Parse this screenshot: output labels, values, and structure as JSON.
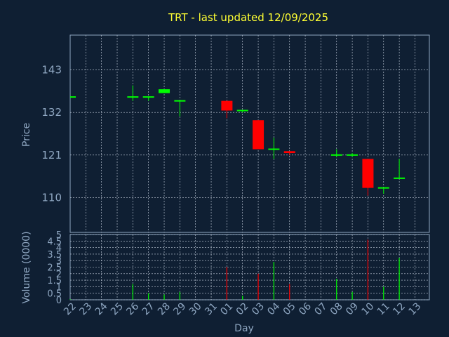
{
  "chart_data": {
    "type": "candlestick",
    "title": "TRT - last updated 12/09/2025",
    "xlabel": "Day",
    "ylabel": "Price",
    "volume_label": "Volume (0000)",
    "x_ticks": [
      "22",
      "23",
      "24",
      "25",
      "26",
      "27",
      "28",
      "29",
      "30",
      "31",
      "01",
      "02",
      "03",
      "04",
      "05",
      "06",
      "07",
      "08",
      "09",
      "10",
      "11",
      "12",
      "13"
    ],
    "price_ticks": [
      110,
      121,
      132,
      143
    ],
    "price_ylim": [
      101,
      152
    ],
    "volume_ticks": [
      "0",
      "0.5",
      "1",
      "1.5",
      "2",
      "2.5",
      "3",
      "3.5",
      "4",
      "4.5",
      "5"
    ],
    "volume_ylim": [
      0,
      5
    ],
    "grid": true,
    "colors": {
      "up": "#00ff00",
      "down": "#ff0000",
      "title": "#ffff33",
      "axis": "#8fa7c2",
      "background": "#0f1f33"
    },
    "candles": [
      {
        "day": "22",
        "open": 136,
        "close": 136,
        "high": 136,
        "low": 136,
        "volume": 0.05
      },
      {
        "day": "26",
        "open": 136,
        "close": 136,
        "high": 139,
        "low": 135,
        "volume": 1.2
      },
      {
        "day": "27",
        "open": 136,
        "close": 136,
        "high": 136,
        "low": 135,
        "volume": 0.5
      },
      {
        "day": "28",
        "open": 137,
        "close": 138,
        "high": 138,
        "low": 137,
        "volume": 0.4
      },
      {
        "day": "29",
        "open": 135,
        "close": 135,
        "high": 135,
        "low": 131,
        "volume": 0.6
      },
      {
        "day": "01",
        "open": 135,
        "close": 132.5,
        "high": 135,
        "low": 130.5,
        "volume": 2.5
      },
      {
        "day": "02",
        "open": 132.5,
        "close": 132.5,
        "high": 132.5,
        "low": 132,
        "volume": 0.3
      },
      {
        "day": "03",
        "open": 130,
        "close": 122.5,
        "high": 130,
        "low": 122.5,
        "volume": 2.0
      },
      {
        "day": "04",
        "open": 122.5,
        "close": 122.5,
        "high": 125.5,
        "low": 120,
        "volume": 2.9
      },
      {
        "day": "05",
        "open": 122,
        "close": 121.5,
        "high": 122,
        "low": 121,
        "volume": 1.2
      },
      {
        "day": "08",
        "open": 121,
        "close": 121,
        "high": 122.5,
        "low": 120.5,
        "volume": 1.6
      },
      {
        "day": "09",
        "open": 121,
        "close": 121,
        "high": 121.5,
        "low": 120.5,
        "volume": 0.6
      },
      {
        "day": "10",
        "open": 120,
        "close": 112.5,
        "high": 120,
        "low": 110.5,
        "volume": 4.6
      },
      {
        "day": "11",
        "open": 112.5,
        "close": 112.5,
        "high": 112.5,
        "low": 111,
        "volume": 1.0
      },
      {
        "day": "12",
        "open": 115,
        "close": 115,
        "high": 120,
        "low": 115,
        "volume": 3.2
      }
    ]
  }
}
